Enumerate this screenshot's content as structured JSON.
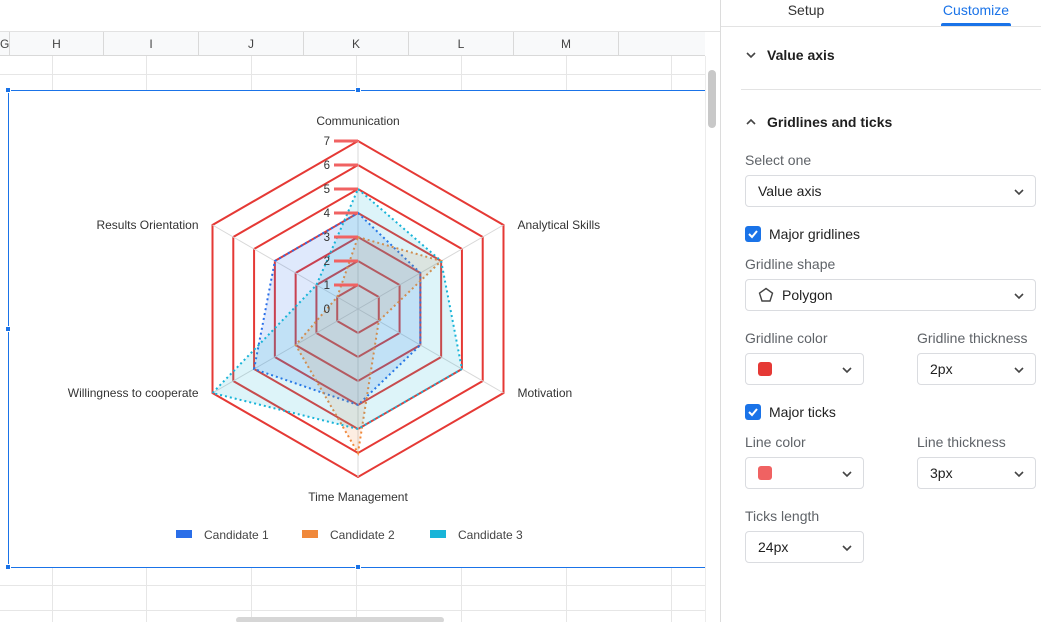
{
  "sheet": {
    "columns": [
      {
        "label": "G"
      },
      {
        "label": "H"
      },
      {
        "label": "I"
      },
      {
        "label": "J"
      },
      {
        "label": "K"
      },
      {
        "label": "L"
      },
      {
        "label": "M"
      }
    ]
  },
  "chart_data": {
    "type": "radar",
    "categories": [
      "Communication",
      "Analytical Skills",
      "Motivation",
      "Time Management",
      "Willingness to cooperate",
      "Results Orientation"
    ],
    "ticks": [
      "0",
      "1",
      "2",
      "3",
      "4",
      "5",
      "6",
      "7"
    ],
    "ylim": [
      0,
      7
    ],
    "gridline_shape": "polygon",
    "series": [
      {
        "name": "Candidate 1",
        "values": [
          4,
          3,
          3,
          4,
          5,
          4
        ],
        "color": "#2a6ee8"
      },
      {
        "name": "Candidate 2",
        "values": [
          3,
          4,
          1,
          6,
          3,
          1
        ],
        "color": "#f0883a"
      },
      {
        "name": "Candidate 3",
        "values": [
          5,
          4,
          5,
          5,
          7,
          2
        ],
        "color": "#18b4d8"
      }
    ],
    "gridline_color": "#e53935",
    "tick_color": "#f06262",
    "legend_position": "bottom"
  },
  "panel": {
    "tabs": {
      "setup": "Setup",
      "customize": "Customize"
    },
    "value_axis_section": "Value axis",
    "gridlines_section": "Gridlines and ticks",
    "select_one_label": "Select one",
    "select_one_value": "Value axis",
    "major_gridlines_label": "Major gridlines",
    "gridline_shape_label": "Gridline shape",
    "gridline_shape_value": "Polygon",
    "gridline_color_label": "Gridline color",
    "gridline_color": "#e53935",
    "gridline_thickness_label": "Gridline thickness",
    "gridline_thickness_value": "2px",
    "major_ticks_label": "Major ticks",
    "line_color_label": "Line color",
    "line_color": "#f06262",
    "line_thickness_label": "Line thickness",
    "line_thickness_value": "3px",
    "ticks_length_label": "Ticks length",
    "ticks_length_value": "24px"
  }
}
